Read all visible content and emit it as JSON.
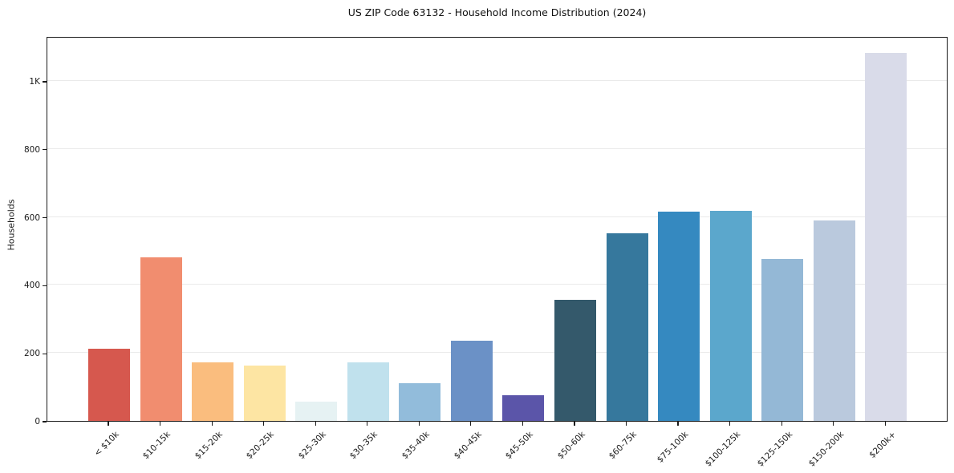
{
  "chart_data": {
    "type": "bar",
    "title": "US ZIP Code 63132 - Household Income Distribution (2024)",
    "xlabel": "",
    "ylabel": "Households",
    "categories": [
      "< $10k",
      "$10-15k",
      "$15-20k",
      "$20-25k",
      "$25-30k",
      "$30-35k",
      "$35-40k",
      "$40-45k",
      "$45-50k",
      "$50-60k",
      "$60-75k",
      "$75-100k",
      "$100-125k",
      "$125-150k",
      "$150-200k",
      "$200k+"
    ],
    "values": [
      213,
      480,
      172,
      163,
      56,
      172,
      110,
      237,
      75,
      355,
      552,
      615,
      618,
      477,
      590,
      1082
    ],
    "bar_colors": [
      "#d6584e",
      "#f18d6f",
      "#fabd7e",
      "#fde5a3",
      "#e6f2f3",
      "#c0e1ed",
      "#92bcdb",
      "#6b91c6",
      "#5b55a9",
      "#34596b",
      "#36789d",
      "#3589c0",
      "#5ba7cc",
      "#94b8d6",
      "#bac9dd",
      "#d9dbe9"
    ],
    "yticks": {
      "values": [
        0,
        200,
        400,
        600,
        800,
        1000
      ],
      "labels": [
        "0",
        "200",
        "400",
        "600",
        "800",
        "1K"
      ]
    },
    "ylim": [
      0,
      1132
    ],
    "grid": "horizontal",
    "gridline_color": "#eaeaea",
    "axis_color": "#1a1a1a",
    "background": "#ffffff",
    "legend": "none"
  }
}
